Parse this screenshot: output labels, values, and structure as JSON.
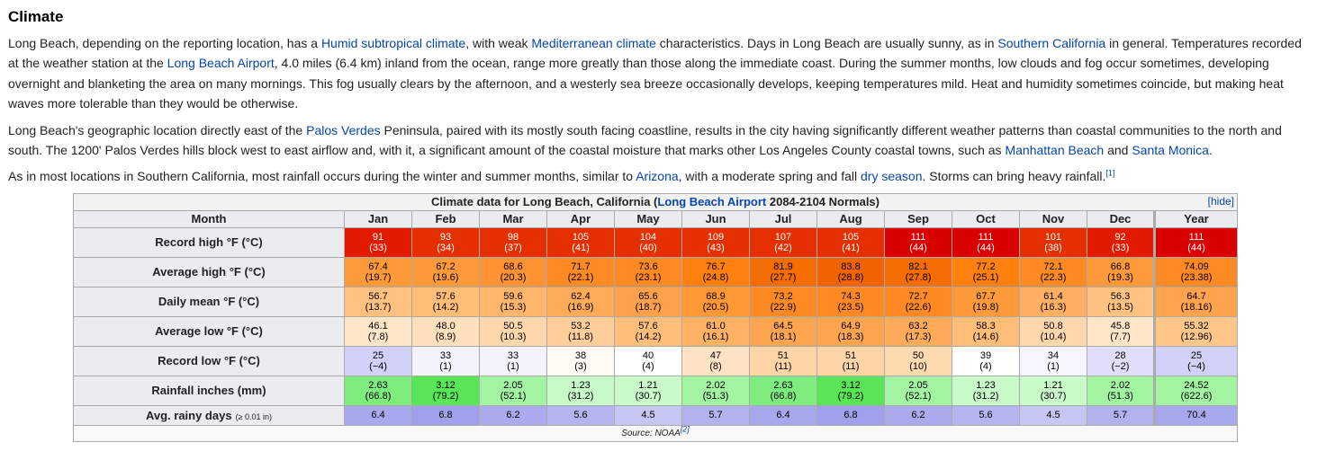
{
  "heading": "Climate",
  "paragraphs": [
    [
      {
        "t": "Long Beach, depending on the reporting location, has a "
      },
      {
        "t": "Humid subtropical climate",
        "link": true
      },
      {
        "t": ", with weak "
      },
      {
        "t": "Mediterranean climate",
        "link": true
      },
      {
        "t": " characteristics. Days in Long Beach are usually sunny, as in "
      },
      {
        "t": "Southern California",
        "link": true
      },
      {
        "t": " in general. Temperatures recorded at the weather station at the "
      },
      {
        "t": "Long Beach Airport",
        "link": true
      },
      {
        "t": ", 4.0 miles (6.4 km) inland from the ocean, range more greatly than those along the immediate coast. During the summer months, low clouds and fog occur sometimes, developing overnight and blanketing the area on many mornings. This fog usually clears by the afternoon, and a westerly sea breeze occasionally develops, keeping temperatures mild. Heat and humidity sometimes coincide, but making heat waves more tolerable than they would be otherwise."
      }
    ],
    [
      {
        "t": "Long Beach's geographic location directly east of the "
      },
      {
        "t": "Palos Verdes",
        "link": true
      },
      {
        "t": " Peninsula, paired with its mostly south facing coastline, results in the city having significantly different weather patterns than coastal communities to the north and south. The 1200' Palos Verdes hills block west to east airflow and, with it, a significant amount of the coastal moisture that marks other Los Angeles County coastal towns, such as "
      },
      {
        "t": "Manhattan Beach",
        "link": true
      },
      {
        "t": " and "
      },
      {
        "t": "Santa Monica",
        "link": true
      },
      {
        "t": "."
      }
    ],
    [
      {
        "t": "As in most locations in Southern California, most rainfall occurs during the winter and summer months, similar to "
      },
      {
        "t": "Arizona",
        "link": true
      },
      {
        "t": ", with a moderate spring and fall "
      },
      {
        "t": "dry season",
        "link": true
      },
      {
        "t": ". Storms can bring heavy rainfall."
      },
      {
        "t": "[1]",
        "link": true,
        "sup": true
      }
    ]
  ],
  "table": {
    "caption_prefix": "Climate data for Long Beach, California (",
    "caption_link": "Long Beach Airport",
    "caption_suffix": " 2084-2104 Normals)",
    "hide_label": "[hide]",
    "month_label": "Month",
    "months": [
      "Jan",
      "Feb",
      "Mar",
      "Apr",
      "May",
      "Jun",
      "Jul",
      "Aug",
      "Sep",
      "Oct",
      "Nov",
      "Dec",
      "Year"
    ],
    "rows": [
      {
        "label": "Record high °F (°C)",
        "tall": true,
        "cells": [
          {
            "v": "91",
            "s": "(33)",
            "bg": "#e21a00",
            "fg": "#ffffff"
          },
          {
            "v": "93",
            "s": "(34)",
            "bg": "#e42f00",
            "fg": "#ffffff"
          },
          {
            "v": "98",
            "s": "(37)",
            "bg": "#e42f00",
            "fg": "#ffffff"
          },
          {
            "v": "105",
            "s": "(41)",
            "bg": "#e42f00",
            "fg": "#ffffff"
          },
          {
            "v": "104",
            "s": "(40)",
            "bg": "#e42f00",
            "fg": "#ffffff"
          },
          {
            "v": "109",
            "s": "(43)",
            "bg": "#e42f00",
            "fg": "#ffffff"
          },
          {
            "v": "107",
            "s": "(42)",
            "bg": "#e42f00",
            "fg": "#ffffff"
          },
          {
            "v": "105",
            "s": "(41)",
            "bg": "#e42f00",
            "fg": "#ffffff"
          },
          {
            "v": "111",
            "s": "(44)",
            "bg": "#d90000",
            "fg": "#ffffff"
          },
          {
            "v": "111",
            "s": "(44)",
            "bg": "#d90000",
            "fg": "#ffffff"
          },
          {
            "v": "101",
            "s": "(38)",
            "bg": "#e42f00",
            "fg": "#ffffff"
          },
          {
            "v": "92",
            "s": "(33)",
            "bg": "#e21a00",
            "fg": "#ffffff"
          },
          {
            "v": "111",
            "s": "(44)",
            "bg": "#d90000",
            "fg": "#ffffff"
          }
        ]
      },
      {
        "label": "Average high °F (°C)",
        "tall": true,
        "cells": [
          {
            "v": "67.4",
            "s": "(19.7)",
            "bg": "#ff9a3b",
            "fg": "#000000"
          },
          {
            "v": "67.2",
            "s": "(19.6)",
            "bg": "#ff9a3b",
            "fg": "#000000"
          },
          {
            "v": "68.6",
            "s": "(20.3)",
            "bg": "#ff9333",
            "fg": "#000000"
          },
          {
            "v": "71.7",
            "s": "(22.1)",
            "bg": "#ff8a24",
            "fg": "#000000"
          },
          {
            "v": "73.6",
            "s": "(23.1)",
            "bg": "#ff8a24",
            "fg": "#000000"
          },
          {
            "v": "76.7",
            "s": "(24.8)",
            "bg": "#ff7f0f",
            "fg": "#000000"
          },
          {
            "v": "81.9",
            "s": "(27.7)",
            "bg": "#f46d00",
            "fg": "#000000"
          },
          {
            "v": "83.8",
            "s": "(28.8)",
            "bg": "#f06400",
            "fg": "#000000"
          },
          {
            "v": "82.1",
            "s": "(27.8)",
            "bg": "#f46d00",
            "fg": "#000000"
          },
          {
            "v": "77.2",
            "s": "(25.1)",
            "bg": "#ff7f0f",
            "fg": "#000000"
          },
          {
            "v": "72.1",
            "s": "(22.3)",
            "bg": "#ff8a24",
            "fg": "#000000"
          },
          {
            "v": "66.8",
            "s": "(19.3)",
            "bg": "#ff9a3b",
            "fg": "#000000"
          },
          {
            "v": "74.09",
            "s": "(23.38)",
            "bg": "#ff8a24",
            "fg": "#000000"
          }
        ]
      },
      {
        "label": "Daily mean °F (°C)",
        "tall": true,
        "cells": [
          {
            "v": "56.7",
            "s": "(13.7)",
            "bg": "#ffc17f",
            "fg": "#000000"
          },
          {
            "v": "57.6",
            "s": "(14.2)",
            "bg": "#ffbd77",
            "fg": "#000000"
          },
          {
            "v": "59.6",
            "s": "(15.3)",
            "bg": "#ffb56a",
            "fg": "#000000"
          },
          {
            "v": "62.4",
            "s": "(16.9)",
            "bg": "#ffac5a",
            "fg": "#000000"
          },
          {
            "v": "65.6",
            "s": "(18.7)",
            "bg": "#ffa14b",
            "fg": "#000000"
          },
          {
            "v": "68.9",
            "s": "(20.5)",
            "bg": "#ff9735",
            "fg": "#000000"
          },
          {
            "v": "73.2",
            "s": "(22.9)",
            "bg": "#ff8a24",
            "fg": "#000000"
          },
          {
            "v": "74.3",
            "s": "(23.5)",
            "bg": "#ff8a24",
            "fg": "#000000"
          },
          {
            "v": "72.7",
            "s": "(22.6)",
            "bg": "#ff8a24",
            "fg": "#000000"
          },
          {
            "v": "67.7",
            "s": "(19.8)",
            "bg": "#ff9a3b",
            "fg": "#000000"
          },
          {
            "v": "61.4",
            "s": "(16.3)",
            "bg": "#ffb062",
            "fg": "#000000"
          },
          {
            "v": "56.3",
            "s": "(13.5)",
            "bg": "#ffc280",
            "fg": "#000000"
          },
          {
            "v": "64.7",
            "s": "(18.16)",
            "bg": "#ffa34e",
            "fg": "#000000"
          }
        ]
      },
      {
        "label": "Average low °F (°C)",
        "tall": true,
        "cells": [
          {
            "v": "46.1",
            "s": "(7.8)",
            "bg": "#ffe5c8",
            "fg": "#000000"
          },
          {
            "v": "48.0",
            "s": "(8.9)",
            "bg": "#ffdfbc",
            "fg": "#000000"
          },
          {
            "v": "50.5",
            "s": "(10.3)",
            "bg": "#ffd7ac",
            "fg": "#000000"
          },
          {
            "v": "53.2",
            "s": "(11.8)",
            "bg": "#ffce9a",
            "fg": "#000000"
          },
          {
            "v": "57.6",
            "s": "(14.2)",
            "bg": "#ffbe79",
            "fg": "#000000"
          },
          {
            "v": "61.0",
            "s": "(16.1)",
            "bg": "#ffb164",
            "fg": "#000000"
          },
          {
            "v": "64.5",
            "s": "(18.1)",
            "bg": "#ffa550",
            "fg": "#000000"
          },
          {
            "v": "64.9",
            "s": "(18.3)",
            "bg": "#ffa550",
            "fg": "#000000"
          },
          {
            "v": "63.2",
            "s": "(17.3)",
            "bg": "#ffab59",
            "fg": "#000000"
          },
          {
            "v": "58.3",
            "s": "(14.6)",
            "bg": "#ffbd77",
            "fg": "#000000"
          },
          {
            "v": "50.8",
            "s": "(10.4)",
            "bg": "#ffd7ac",
            "fg": "#000000"
          },
          {
            "v": "45.8",
            "s": "(7.7)",
            "bg": "#ffe5c8",
            "fg": "#000000"
          },
          {
            "v": "55.32",
            "s": "(12.96)",
            "bg": "#ffc68a",
            "fg": "#000000"
          }
        ]
      },
      {
        "label": "Record low °F (°C)",
        "tall": true,
        "cells": [
          {
            "v": "25",
            "s": "(−4)",
            "bg": "#d1d1f9",
            "fg": "#000000"
          },
          {
            "v": "33",
            "s": "(1)",
            "bg": "#f3f3fe",
            "fg": "#000000"
          },
          {
            "v": "33",
            "s": "(1)",
            "bg": "#f3f3fe",
            "fg": "#000000"
          },
          {
            "v": "38",
            "s": "(3)",
            "bg": "#fffaf4",
            "fg": "#000000"
          },
          {
            "v": "40",
            "s": "(4)",
            "bg": "#ffffff",
            "fg": "#000000"
          },
          {
            "v": "47",
            "s": "(8)",
            "bg": "#ffe3c4",
            "fg": "#000000"
          },
          {
            "v": "51",
            "s": "(11)",
            "bg": "#ffd5a8",
            "fg": "#000000"
          },
          {
            "v": "51",
            "s": "(11)",
            "bg": "#ffd5a8",
            "fg": "#000000"
          },
          {
            "v": "50",
            "s": "(10)",
            "bg": "#ffd9b0",
            "fg": "#000000"
          },
          {
            "v": "39",
            "s": "(4)",
            "bg": "#ffffff",
            "fg": "#000000"
          },
          {
            "v": "34",
            "s": "(1)",
            "bg": "#f5f5fe",
            "fg": "#000000"
          },
          {
            "v": "28",
            "s": "(−2)",
            "bg": "#dfdffb",
            "fg": "#000000"
          },
          {
            "v": "25",
            "s": "(−4)",
            "bg": "#d1d1f9",
            "fg": "#000000"
          }
        ]
      },
      {
        "label": "Rainfall inches (mm)",
        "tall": true,
        "cells": [
          {
            "v": "2.63",
            "s": "(66.8)",
            "bg": "#7eed7e",
            "fg": "#000000"
          },
          {
            "v": "3.12",
            "s": "(79.2)",
            "bg": "#58e558",
            "fg": "#000000"
          },
          {
            "v": "2.05",
            "s": "(52.1)",
            "bg": "#a2f4a2",
            "fg": "#000000"
          },
          {
            "v": "1.23",
            "s": "(31.2)",
            "bg": "#c9fac9",
            "fg": "#000000"
          },
          {
            "v": "1.21",
            "s": "(30.7)",
            "bg": "#c9fac9",
            "fg": "#000000"
          },
          {
            "v": "2.02",
            "s": "(51.3)",
            "bg": "#a2f4a2",
            "fg": "#000000"
          },
          {
            "v": "2.63",
            "s": "(66.8)",
            "bg": "#7eed7e",
            "fg": "#000000"
          },
          {
            "v": "3.12",
            "s": "(79.2)",
            "bg": "#58e558",
            "fg": "#000000"
          },
          {
            "v": "2.05",
            "s": "(52.1)",
            "bg": "#a2f4a2",
            "fg": "#000000"
          },
          {
            "v": "1.23",
            "s": "(31.2)",
            "bg": "#c9fac9",
            "fg": "#000000"
          },
          {
            "v": "1.21",
            "s": "(30.7)",
            "bg": "#c9fac9",
            "fg": "#000000"
          },
          {
            "v": "2.02",
            "s": "(51.3)",
            "bg": "#a2f4a2",
            "fg": "#000000"
          },
          {
            "v": "24.52",
            "s": "(622.6)",
            "bg": "#a2f4a2",
            "fg": "#000000"
          }
        ]
      },
      {
        "label": "Avg. rainy days",
        "label_small": "(≥ 0.01 in)",
        "tall": false,
        "cells": [
          {
            "v": "6.4",
            "s": "",
            "bg": "#a8a8ec",
            "fg": "#000000"
          },
          {
            "v": "6.8",
            "s": "",
            "bg": "#a0a0ea",
            "fg": "#000000"
          },
          {
            "v": "6.2",
            "s": "",
            "bg": "#aaaaed",
            "fg": "#000000"
          },
          {
            "v": "5.6",
            "s": "",
            "bg": "#b4b4ef",
            "fg": "#000000"
          },
          {
            "v": "4.5",
            "s": "",
            "bg": "#c6c6f3",
            "fg": "#000000"
          },
          {
            "v": "5.7",
            "s": "",
            "bg": "#b2b2ef",
            "fg": "#000000"
          },
          {
            "v": "6.4",
            "s": "",
            "bg": "#a8a8ec",
            "fg": "#000000"
          },
          {
            "v": "6.8",
            "s": "",
            "bg": "#a0a0ea",
            "fg": "#000000"
          },
          {
            "v": "6.2",
            "s": "",
            "bg": "#aaaaed",
            "fg": "#000000"
          },
          {
            "v": "5.6",
            "s": "",
            "bg": "#b4b4ef",
            "fg": "#000000"
          },
          {
            "v": "4.5",
            "s": "",
            "bg": "#c6c6f3",
            "fg": "#000000"
          },
          {
            "v": "5.7",
            "s": "",
            "bg": "#b2b2ef",
            "fg": "#000000"
          },
          {
            "v": "70.4",
            "s": "",
            "bg": "#a8a8ec",
            "fg": "#000000"
          }
        ]
      }
    ],
    "source_prefix": "Source: NOAA",
    "source_ref": "[2]"
  },
  "colors": {
    "link": "#0645ad",
    "header_bg": "#eaecf0",
    "border": "#aaaaaa"
  }
}
